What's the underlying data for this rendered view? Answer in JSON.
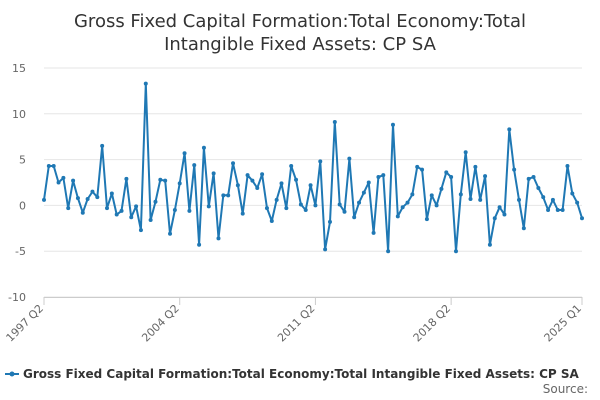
{
  "chart_data": {
    "type": "line",
    "title_lines": [
      "Gross Fixed Capital Formation:Total Economy:Total",
      "Intangible Fixed Assets: CP SA"
    ],
    "ylim": [
      -10,
      15
    ],
    "yticks": [
      -10,
      -5,
      0,
      5,
      10,
      15
    ],
    "xtick_labels": [
      "1997 Q2",
      "2004 Q2",
      "2011 Q2",
      "2018 Q2",
      "2025 Q1"
    ],
    "xtick_index": [
      0,
      28,
      56,
      84,
      111
    ],
    "grid": true,
    "legend_position": "bottom",
    "color": "#1f78b4",
    "series": [
      {
        "name": "Gross Fixed Capital Formation:Total Economy:Total Intangible Fixed Assets: CP SA",
        "values": [
          0.6,
          4.3,
          4.3,
          2.5,
          3.0,
          -0.3,
          2.7,
          0.8,
          -0.8,
          0.7,
          1.5,
          0.9,
          6.5,
          -0.3,
          1.3,
          -1.0,
          -0.6,
          2.9,
          -1.3,
          -0.1,
          -2.7,
          13.3,
          -1.6,
          0.4,
          2.8,
          2.7,
          -3.1,
          -0.5,
          2.4,
          5.7,
          -0.6,
          4.4,
          -4.3,
          6.3,
          -0.1,
          3.5,
          -3.6,
          1.1,
          1.1,
          4.6,
          2.2,
          -0.9,
          3.3,
          2.7,
          1.9,
          3.4,
          -0.3,
          -1.7,
          0.6,
          2.4,
          -0.3,
          4.3,
          2.8,
          0.1,
          -0.5,
          2.2,
          0.0,
          4.8,
          -4.8,
          -1.8,
          9.1,
          0.1,
          -0.7,
          5.1,
          -1.3,
          0.3,
          1.4,
          2.5,
          -3.0,
          3.1,
          3.3,
          -5.0,
          8.8,
          -1.2,
          -0.2,
          0.3,
          1.2,
          4.2,
          3.9,
          -1.5,
          1.1,
          0.0,
          1.8,
          3.6,
          3.1,
          -5.0,
          1.2,
          5.8,
          0.7,
          4.2,
          0.6,
          3.2,
          -4.3,
          -1.4,
          -0.2,
          -1.0,
          8.3,
          3.9,
          0.6,
          -2.5,
          2.9,
          3.1,
          1.9,
          0.9,
          -0.5,
          0.6,
          -0.5,
          -0.5,
          4.3,
          1.3,
          0.3,
          -1.4
        ]
      }
    ]
  },
  "credits": "Source:"
}
